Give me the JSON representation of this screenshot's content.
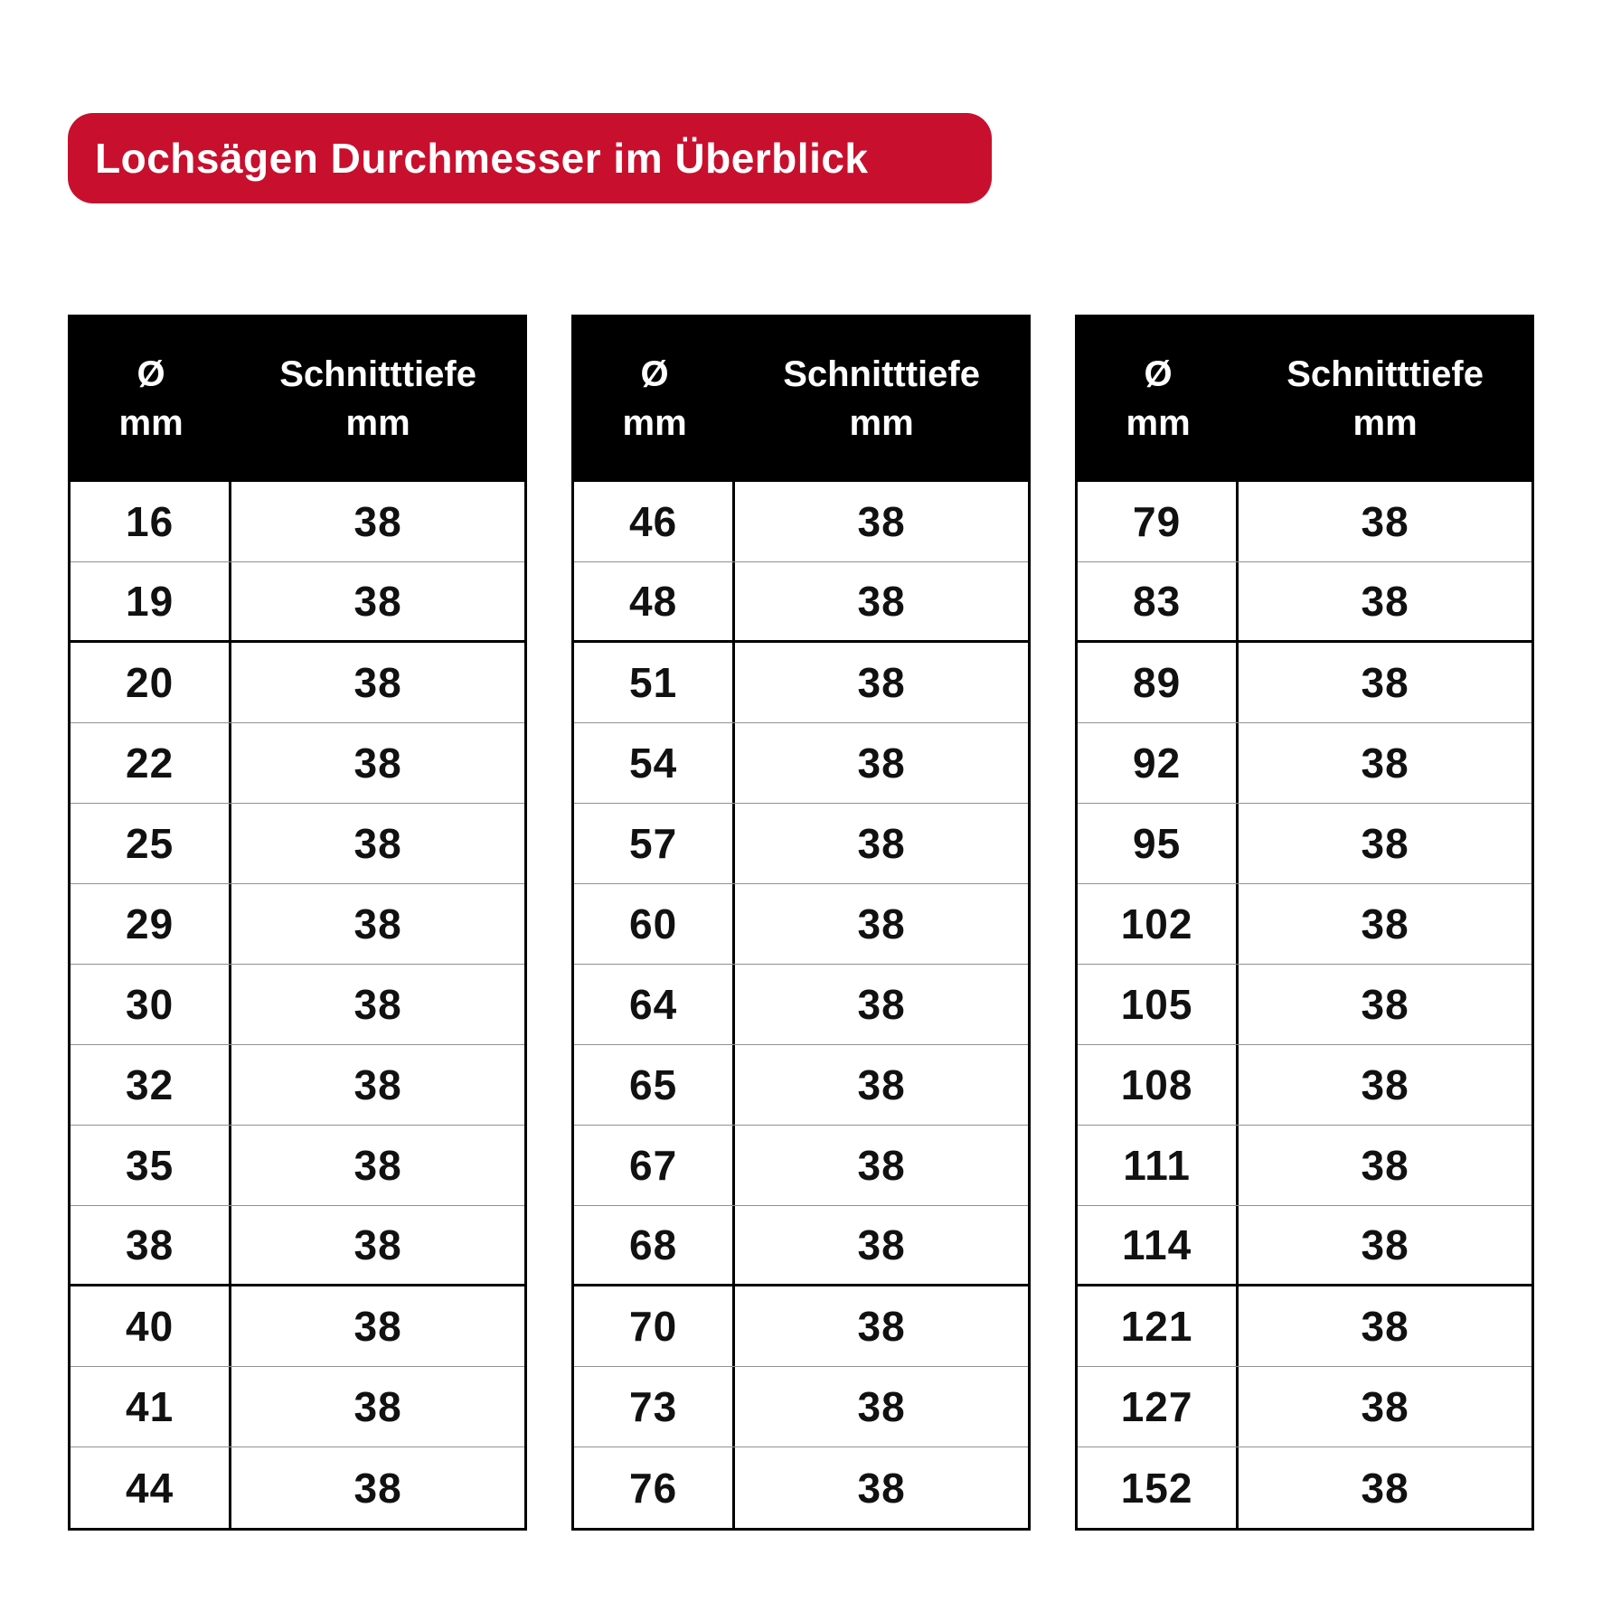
{
  "title_banner": {
    "label": "Lochsägen Durchmesser im Überblick"
  },
  "colors": {
    "accent_red": "#c8102e",
    "table_header_bg": "#000000",
    "grid_line": "#919191",
    "text": "#111111"
  },
  "table_headers": {
    "diameter_line1": "Ø",
    "diameter_line2": "mm",
    "depth_line1": "Schnitttiefe",
    "depth_line2": "mm"
  },
  "tables": [
    {
      "rows": [
        [
          "16",
          "38"
        ],
        [
          "19",
          "38"
        ],
        [
          "20",
          "38"
        ],
        [
          "22",
          "38"
        ],
        [
          "25",
          "38"
        ],
        [
          "29",
          "38"
        ],
        [
          "30",
          "38"
        ],
        [
          "32",
          "38"
        ],
        [
          "35",
          "38"
        ],
        [
          "38",
          "38"
        ],
        [
          "40",
          "38"
        ],
        [
          "41",
          "38"
        ],
        [
          "44",
          "38"
        ]
      ]
    },
    {
      "rows": [
        [
          "46",
          "38"
        ],
        [
          "48",
          "38"
        ],
        [
          "51",
          "38"
        ],
        [
          "54",
          "38"
        ],
        [
          "57",
          "38"
        ],
        [
          "60",
          "38"
        ],
        [
          "64",
          "38"
        ],
        [
          "65",
          "38"
        ],
        [
          "67",
          "38"
        ],
        [
          "68",
          "38"
        ],
        [
          "70",
          "38"
        ],
        [
          "73",
          "38"
        ],
        [
          "76",
          "38"
        ]
      ]
    },
    {
      "rows": [
        [
          "79",
          "38"
        ],
        [
          "83",
          "38"
        ],
        [
          "89",
          "38"
        ],
        [
          "92",
          "38"
        ],
        [
          "95",
          "38"
        ],
        [
          "102",
          "38"
        ],
        [
          "105",
          "38"
        ],
        [
          "108",
          "38"
        ],
        [
          "111",
          "38"
        ],
        [
          "114",
          "38"
        ],
        [
          "121",
          "38"
        ],
        [
          "127",
          "38"
        ],
        [
          "152",
          "38"
        ]
      ]
    }
  ],
  "chart_data": {
    "type": "table",
    "title": "Lochsägen Durchmesser im Überblick",
    "columns": [
      "Ø mm",
      "Schnitttiefe mm"
    ],
    "tables": [
      {
        "diameters_mm": [
          16,
          19,
          20,
          22,
          25,
          29,
          30,
          32,
          35,
          38,
          40,
          41,
          44
        ],
        "cut_depth_mm_each": 38
      },
      {
        "diameters_mm": [
          46,
          48,
          51,
          54,
          57,
          60,
          64,
          65,
          67,
          68,
          70,
          73,
          76
        ],
        "cut_depth_mm_each": 38
      },
      {
        "diameters_mm": [
          79,
          83,
          89,
          92,
          95,
          102,
          105,
          108,
          111,
          114,
          121,
          127,
          152
        ],
        "cut_depth_mm_each": 38
      }
    ]
  }
}
